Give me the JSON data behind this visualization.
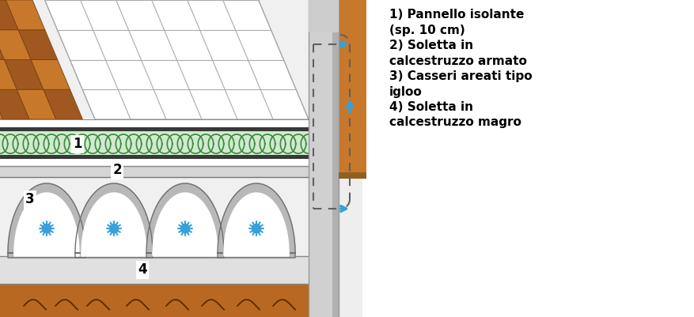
{
  "fig_width": 8.77,
  "fig_height": 4.01,
  "bg_color": "#ffffff",
  "legend_lines": [
    "1) Pannello isolante",
    "(sp. 10 cm)",
    "2) Soletta in",
    "calcestruzzo armato",
    "3) Casseri areati tipo",
    "igloo",
    "4) Soletta in",
    "calcestruzzo magro"
  ],
  "tile_orange": "#c8782a",
  "tile_dark_line": "#7a4010",
  "insulation_green": "#3a8a3a",
  "insulation_light": "#d0ead0",
  "igloo_gray": "#b8b8b8",
  "igloo_outline": "#707070",
  "concrete_gray": "#d8d8d8",
  "wall_light_gray": "#d0d0d0",
  "wall_mid_gray": "#b0b0b0",
  "arrow_blue": "#38a0d8",
  "dashed_color": "#606060",
  "soil_brown": "#b86820",
  "white": "#ffffff",
  "near_black": "#222222",
  "dark_strip": "#383838",
  "label_fs": 11
}
